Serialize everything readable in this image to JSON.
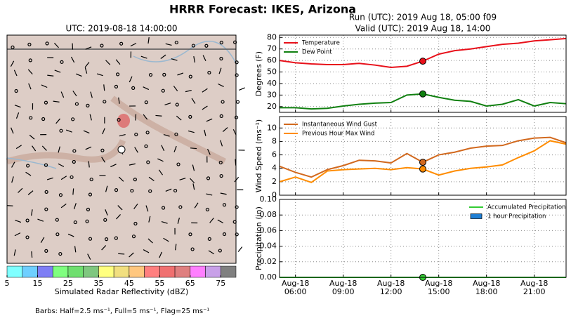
{
  "title": "HRRR Forecast: IKES, Arizona",
  "valid_x": "Aug-18 14:00",
  "map": {
    "title": "UTC: 2019-08-18 14:00:00",
    "colorbar": {
      "label": "Simulated Radar Reflectivity (dBZ)",
      "lim": [
        5,
        80
      ],
      "ticks": [
        5,
        15,
        25,
        35,
        45,
        55,
        65,
        75
      ],
      "colors": [
        "#7fffff",
        "#6ecfff",
        "#7e7ef5",
        "#7fff7f",
        "#6fdf6f",
        "#7fc77f",
        "#ffff7f",
        "#f1df7f",
        "#ffc77f",
        "#ff7f7f",
        "#f07070",
        "#df7f7f",
        "#ff7fff",
        "#c8a0e8",
        "#808080"
      ]
    }
  },
  "barbs_note": "Barbs: Half=2.5 ms⁻¹, Full=5 ms⁻¹, Flag=25 ms⁻¹",
  "chart_data": [
    {
      "type": "line",
      "title": "Run (UTC): 2019 Aug 18, 05:00 f09",
      "subtitle": "Valid (UTC): 2019 Aug 18, 14:00",
      "y_label": "Degrees (F)",
      "legend": "upper left",
      "grid": true,
      "x": [
        "Aug-18 05:00",
        "Aug-18 06:00",
        "Aug-18 07:00",
        "Aug-18 08:00",
        "Aug-18 09:00",
        "Aug-18 10:00",
        "Aug-18 11:00",
        "Aug-18 12:00",
        "Aug-18 13:00",
        "Aug-18 14:00",
        "Aug-18 15:00",
        "Aug-18 16:00",
        "Aug-18 17:00",
        "Aug-18 18:00",
        "Aug-18 19:00",
        "Aug-18 20:00",
        "Aug-18 21:00",
        "Aug-18 22:00",
        "Aug-18 23:00"
      ],
      "xlim": [
        "Aug-18 05:00",
        "Aug-18 23:00"
      ],
      "ylim": [
        15,
        82
      ],
      "yticks": [
        20,
        30,
        40,
        50,
        60,
        70,
        80
      ],
      "series": [
        {
          "name": "Temperature",
          "color": "#e8101a",
          "values": [
            60,
            58,
            57,
            56.4,
            56.4,
            57.5,
            56,
            54,
            55,
            59.4,
            65.5,
            68.5,
            70,
            72,
            74,
            75,
            77,
            78,
            79
          ]
        },
        {
          "name": "Dew Point",
          "color": "#108010",
          "values": [
            19,
            19,
            18,
            18.5,
            20.5,
            22,
            23,
            23.5,
            30,
            31,
            28,
            25.5,
            24.5,
            20.5,
            22,
            26,
            20.5,
            23.5,
            22.5
          ]
        }
      ]
    },
    {
      "type": "line",
      "y_label": "Wind Speed (ms⁻¹)",
      "legend": "upper left",
      "grid": true,
      "x": [
        "Aug-18 05:00",
        "Aug-18 06:00",
        "Aug-18 07:00",
        "Aug-18 08:00",
        "Aug-18 09:00",
        "Aug-18 10:00",
        "Aug-18 11:00",
        "Aug-18 12:00",
        "Aug-18 13:00",
        "Aug-18 14:00",
        "Aug-18 15:00",
        "Aug-18 16:00",
        "Aug-18 17:00",
        "Aug-18 18:00",
        "Aug-18 19:00",
        "Aug-18 20:00",
        "Aug-18 21:00",
        "Aug-18 22:00",
        "Aug-18 23:00"
      ],
      "xlim": [
        "Aug-18 05:00",
        "Aug-18 23:00"
      ],
      "ylim": [
        0,
        11.7
      ],
      "yticks": [
        0,
        2,
        4,
        6,
        8,
        10
      ],
      "series": [
        {
          "name": "Instantaneous Wind Gust",
          "color": "#d2691e",
          "values": [
            4.3,
            3.4,
            2.7,
            3.8,
            4.4,
            5.2,
            5.1,
            4.8,
            6.2,
            4.9,
            6,
            6.4,
            7,
            7.3,
            7.4,
            8.1,
            8.5,
            8.6,
            7.8
          ]
        },
        {
          "name": "Previous Hour Max Wind",
          "color": "#ff8c00",
          "values": [
            2,
            2.7,
            1.9,
            3.6,
            3.8,
            3.9,
            4,
            3.8,
            4.1,
            3.9,
            3,
            3.6,
            4,
            4.2,
            4.5,
            5.6,
            6.6,
            8.1,
            7.6
          ]
        }
      ]
    },
    {
      "type": "line",
      "y_label": "Precipitation (in)",
      "legend": "upper right",
      "grid": true,
      "x": [
        "Aug-18 05:00",
        "Aug-18 06:00",
        "Aug-18 07:00",
        "Aug-18 08:00",
        "Aug-18 09:00",
        "Aug-18 10:00",
        "Aug-18 11:00",
        "Aug-18 12:00",
        "Aug-18 13:00",
        "Aug-18 14:00",
        "Aug-18 15:00",
        "Aug-18 16:00",
        "Aug-18 17:00",
        "Aug-18 18:00",
        "Aug-18 19:00",
        "Aug-18 20:00",
        "Aug-18 21:00",
        "Aug-18 22:00",
        "Aug-18 23:00"
      ],
      "xlim": [
        "Aug-18 05:00",
        "Aug-18 23:00"
      ],
      "ylim": [
        0,
        0.1
      ],
      "yticks": [
        {
          "value": 0,
          "label": "0.00"
        },
        {
          "value": 0.02,
          "label": "0.02"
        },
        {
          "value": 0.04,
          "label": "0.04"
        },
        {
          "value": 0.06,
          "label": "0.06"
        },
        {
          "value": 0.08,
          "label": "0.08"
        },
        {
          "value": 0.1,
          "label": "0.10"
        }
      ],
      "xticks": [
        {
          "value": "Aug-18 06:00",
          "label": [
            "Aug-18",
            "06:00"
          ]
        },
        {
          "value": "Aug-18 09:00",
          "label": [
            "Aug-18",
            "09:00"
          ]
        },
        {
          "value": "Aug-18 12:00",
          "label": [
            "Aug-18",
            "12:00"
          ]
        },
        {
          "value": "Aug-18 15:00",
          "label": [
            "Aug-18",
            "15:00"
          ]
        },
        {
          "value": "Aug-18 18:00",
          "label": [
            "Aug-18",
            "18:00"
          ]
        },
        {
          "value": "Aug-18 21:00",
          "label": [
            "Aug-18",
            "21:00"
          ]
        }
      ],
      "series": [
        {
          "name": "Accumulated Precipitation",
          "color": "#33cc33",
          "type": "line",
          "values": [
            0,
            0,
            0,
            0,
            0,
            0,
            0,
            0,
            0,
            0,
            0,
            0,
            0,
            0,
            0,
            0,
            0,
            0,
            0
          ]
        },
        {
          "name": "1 hour Precipitation",
          "color": "#1f7fd4",
          "type": "bar",
          "values": [
            0,
            0,
            0,
            0,
            0,
            0,
            0,
            0,
            0,
            0,
            0,
            0,
            0,
            0,
            0,
            0,
            0,
            0,
            0
          ]
        }
      ]
    }
  ]
}
